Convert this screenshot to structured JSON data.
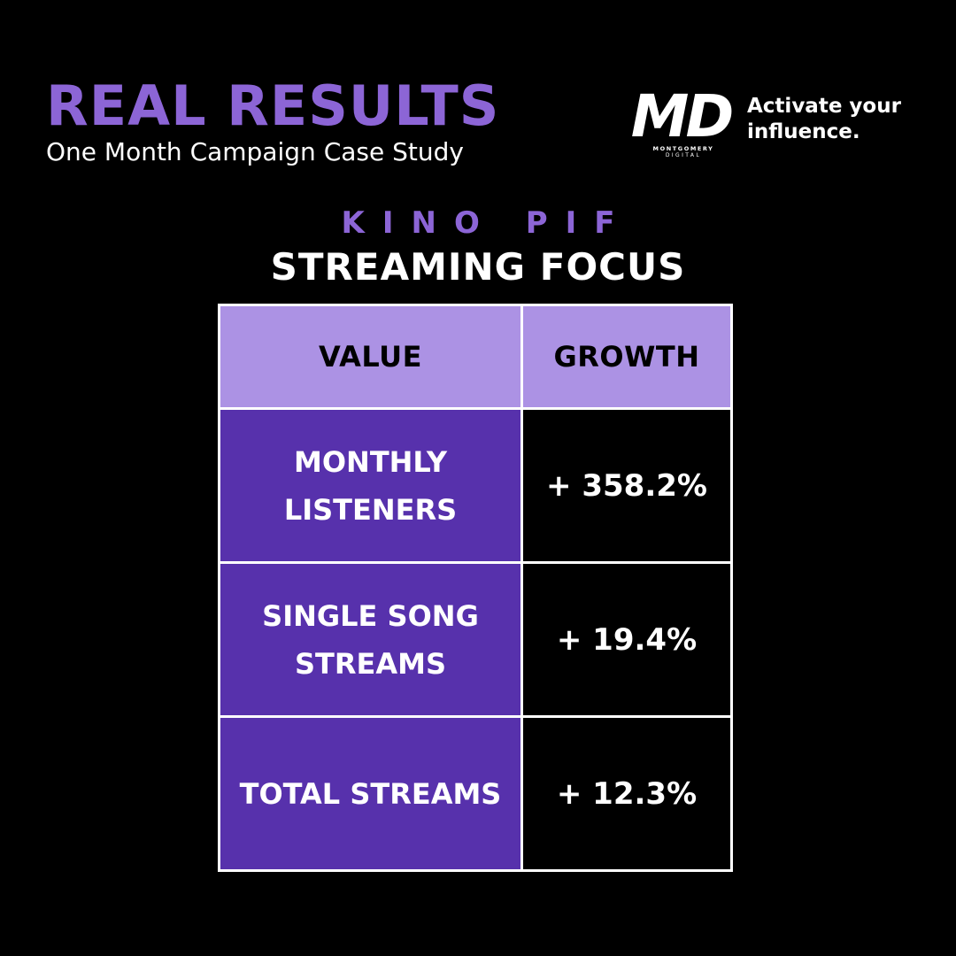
{
  "header": {
    "title": "REAL RESULTS",
    "subtitle": "One Month Campaign Case Study"
  },
  "brand": {
    "logo_letters": "MD",
    "logo_wordmark": "MONTGOMERY",
    "logo_submark": "DIGITAL",
    "tagline": "Activate your influence."
  },
  "campaign": {
    "artist": "KINO PIF",
    "focus": "STREAMING FOCUS"
  },
  "table": {
    "headers": [
      "VALUE",
      "GROWTH"
    ],
    "rows": [
      {
        "metric": "MONTHLY LISTENERS",
        "growth": "+ 358.2%"
      },
      {
        "metric": "SINGLE SONG STREAMS",
        "growth": "+ 19.4%"
      },
      {
        "metric": "TOTAL STREAMS",
        "growth": "+ 12.3%"
      }
    ]
  },
  "colors": {
    "background": "#000000",
    "accent_purple": "#8c65d6",
    "header_cell": "#ac92e4",
    "metric_cell": "#5731ac",
    "text_white": "#ffffff",
    "border": "#ffffff"
  }
}
